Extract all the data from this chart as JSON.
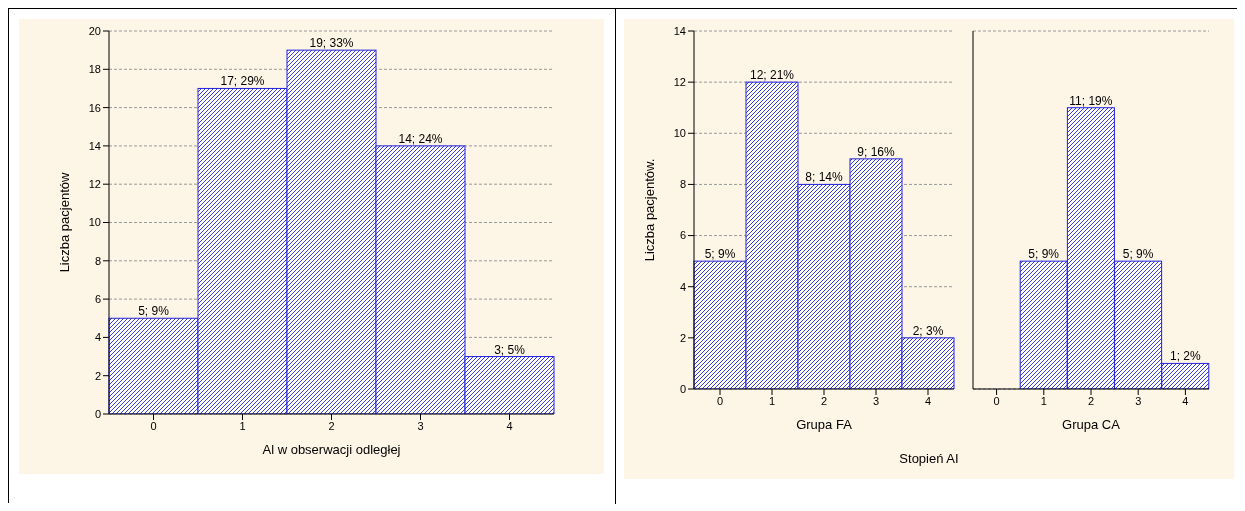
{
  "chart_data": [
    {
      "type": "bar",
      "xlabel": "Al w obserwacji odległej",
      "ylabel": "Liczba pacjentów",
      "categories": [
        "0",
        "1",
        "2",
        "3",
        "4"
      ],
      "values": [
        5,
        17,
        19,
        14,
        3
      ],
      "value_labels": [
        "5; 9%",
        "17; 29%",
        "19; 33%",
        "14; 24%",
        "3; 5%"
      ],
      "color": "#2222dd",
      "ylim": [
        0,
        20
      ],
      "yticks": [
        0,
        2,
        4,
        6,
        8,
        10,
        12,
        14,
        16,
        18,
        20
      ],
      "grid": "y"
    },
    {
      "type": "bar",
      "xlabel": "Grupa FA",
      "ylabel": "Liczba pacjentów.",
      "categories": [
        "0",
        "1",
        "2",
        "3",
        "4"
      ],
      "values": [
        5,
        12,
        8,
        9,
        2
      ],
      "value_labels": [
        "5; 9%",
        "12; 21%",
        "8; 14%",
        "9; 16%",
        "2; 3%"
      ],
      "color": "#2222dd",
      "ylim": [
        0,
        14
      ],
      "yticks": [
        0,
        2,
        4,
        6,
        8,
        10,
        12,
        14
      ],
      "grid": "y"
    },
    {
      "type": "bar",
      "xlabel": "Grupa CA",
      "categories": [
        "0",
        "1",
        "2",
        "3",
        "4"
      ],
      "values": [
        0,
        5,
        11,
        5,
        1
      ],
      "value_labels": [
        null,
        "5; 9%",
        "11; 19%",
        "5; 9%",
        "1; 2%"
      ],
      "color": "#2222dd",
      "ylim": [
        0,
        14
      ],
      "yticks": [
        0,
        2,
        4,
        6,
        8,
        10,
        12,
        14
      ],
      "grid": "y",
      "tick_labels": "x",
      "annotations": [
        "Stopień AI"
      ]
    }
  ]
}
